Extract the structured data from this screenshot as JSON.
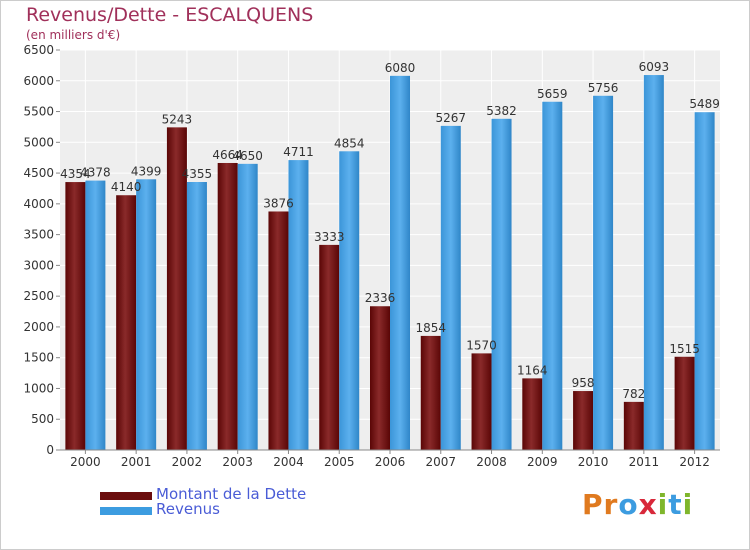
{
  "header": {
    "title": "Revenus/Dette - ESCALQUENS",
    "subtitle": "(en milliers d'€)"
  },
  "logo": {
    "text": "Proxiti",
    "letters": [
      "P",
      "r",
      "o",
      "x",
      "i",
      "t",
      "i"
    ]
  },
  "colors": {
    "dette": "#6b0d0d",
    "revenus": "#3c9ce0",
    "title": "#a0305a",
    "legend_text": "#4a5cd6",
    "logo": [
      "#e07a1f",
      "#e07a1f",
      "#3c9ce0",
      "#d8283a",
      "#7fb62c",
      "#3c9ce0",
      "#7fb62c"
    ]
  },
  "chart_data": {
    "type": "bar",
    "title": "Revenus/Dette - ESCALQUENS",
    "ylabel": "(en milliers d'€)",
    "categories": [
      "2000",
      "2001",
      "2002",
      "2003",
      "2004",
      "2005",
      "2006",
      "2007",
      "2008",
      "2009",
      "2010",
      "2011",
      "2012"
    ],
    "series": [
      {
        "name": "Montant de la Dette",
        "values": [
          4354,
          4140,
          5243,
          4664,
          3876,
          3333,
          2336,
          1854,
          1570,
          1164,
          958,
          782,
          1515
        ]
      },
      {
        "name": "Revenus",
        "values": [
          4378,
          4399,
          4355,
          4650,
          4711,
          4854,
          6080,
          5267,
          5382,
          5659,
          5756,
          6093,
          5489
        ]
      }
    ],
    "ylim": [
      0,
      6500
    ],
    "yticks": [
      0,
      500,
      1000,
      1500,
      2000,
      2500,
      3000,
      3500,
      4000,
      4500,
      5000,
      5500,
      6000,
      6500
    ],
    "grid": true,
    "legend_position": "bottom-left"
  }
}
